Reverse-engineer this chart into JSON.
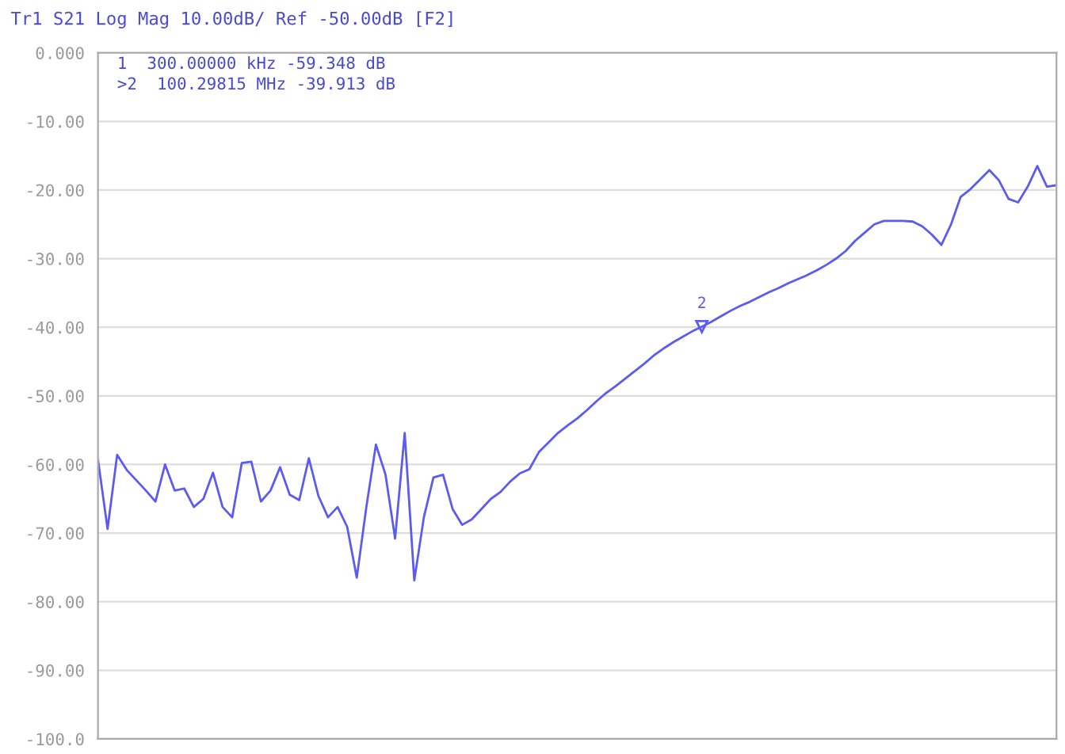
{
  "chart_data": {
    "type": "line",
    "title": "Tr1 S21 Log Mag 10.00dB/ Ref -50.00dB [F2]",
    "annotations": [
      "1  300.00000 kHz -59.348 dB",
      ">2  100.29815 MHz -39.913 dB",
      {
        "text": "2",
        "y": -39.913
      }
    ],
    "categories": [
      null,
      null,
      null,
      null,
      null,
      null,
      null,
      null,
      null,
      null,
      null,
      null,
      null,
      null,
      null,
      null,
      null,
      null,
      null,
      null,
      null,
      null,
      null,
      null,
      null,
      null,
      null,
      null,
      null,
      null,
      null,
      null,
      null,
      null,
      null,
      null,
      null,
      null,
      null,
      null,
      null,
      null,
      null,
      null,
      null,
      null,
      null,
      null,
      null,
      null,
      null,
      null,
      null,
      null,
      null,
      null,
      null,
      null,
      null,
      null,
      null,
      null,
      null,
      null,
      null,
      null,
      null,
      null,
      null,
      null,
      null,
      null,
      null,
      null,
      null,
      null,
      null,
      null,
      null,
      null,
      null,
      null,
      null,
      null,
      null,
      null,
      null,
      null,
      null,
      null,
      null,
      null,
      null,
      null,
      null,
      null,
      null,
      null,
      null,
      null,
      null
    ],
    "series": [
      {
        "color": "#5b5bf0",
        "values": [
          -59.3,
          -69.4,
          -58.6,
          -60.8,
          -62.3,
          -63.8,
          -65.4,
          -60.0,
          -63.8,
          -63.5,
          -66.2,
          -65.0,
          -61.2,
          -66.2,
          -67.7,
          -59.8,
          -59.6,
          -65.4,
          -63.8,
          -60.4,
          -64.4,
          -65.2,
          -59.1,
          -64.6,
          -67.7,
          -66.2,
          -69.1,
          -76.5,
          -66.2,
          -57.1,
          -61.5,
          -70.8,
          -55.4,
          -76.9,
          -67.7,
          -61.9,
          -61.5,
          -66.5,
          -68.8,
          -68.0,
          -66.5,
          -65.0,
          -64.0,
          -62.5,
          -61.3,
          -60.7,
          -58.2,
          -56.8,
          -55.4,
          -54.3,
          -53.3,
          -52.1,
          -50.8,
          -49.6,
          -48.6,
          -47.5,
          -46.4,
          -45.3,
          -44.1,
          -43.1,
          -42.2,
          -41.4,
          -40.6,
          -39.913,
          -39.2,
          -38.4,
          -37.6,
          -36.9,
          -36.3,
          -35.6,
          -34.9,
          -34.3,
          -33.6,
          -33.0,
          -32.4,
          -31.7,
          -30.9,
          -30.0,
          -28.9,
          -27.4,
          -26.2,
          -25.0,
          -24.5,
          -24.5,
          -24.5,
          -24.6,
          -25.3,
          -26.5,
          -28.0,
          -25.0,
          -21.0,
          -19.9,
          -18.5,
          -17.1,
          -18.6,
          -21.3,
          -21.8,
          -19.5,
          -16.5,
          -19.5,
          -19.3
        ]
      }
    ],
    "ylim": [
      -100,
      0
    ],
    "yticks": [
      {
        "value": 0,
        "label": "0.000"
      },
      {
        "value": -10,
        "label": "-10.00"
      },
      {
        "value": -20,
        "label": "-20.00"
      },
      {
        "value": -30,
        "label": "-30.00"
      },
      {
        "value": -40,
        "label": "-40.00"
      },
      {
        "value": -50,
        "label": "-50.00"
      },
      {
        "value": -60,
        "label": "-60.00"
      },
      {
        "value": -70,
        "label": "-70.00"
      },
      {
        "value": -80,
        "label": "-80.00"
      },
      {
        "value": -90,
        "label": "-90.00"
      },
      {
        "value": -100,
        "label": "-100.0"
      }
    ],
    "grid": "y",
    "marker": "none",
    "line_style": "solid"
  }
}
